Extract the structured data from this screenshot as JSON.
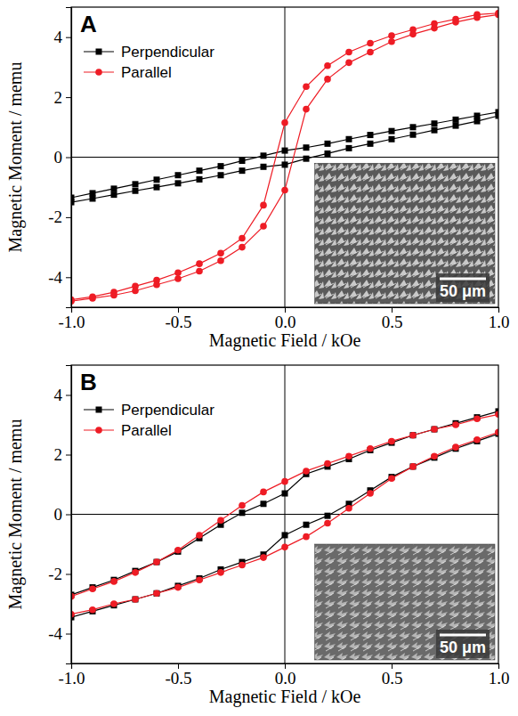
{
  "chart_data": [
    {
      "type": "line",
      "title": "A",
      "x_label": "Magnetic Field / kOe",
      "y_label": "Magnetic Moment / memu",
      "annotations": [
        "50 μm"
      ],
      "x": [
        1,
        0.9,
        0.8,
        0.7,
        0.6,
        0.5,
        0.4,
        0.3,
        0.2,
        0.1,
        0,
        -0.1,
        -0.2,
        -0.3,
        -0.4,
        -0.5,
        -0.6,
        -0.7,
        -0.8,
        -0.9,
        -1,
        -1,
        -0.9,
        -0.8,
        -0.7,
        -0.6,
        -0.5,
        -0.4,
        -0.3,
        -0.2,
        -0.1,
        0,
        0.1,
        0.2,
        0.3,
        0.4,
        0.5,
        0.6,
        0.7,
        0.8,
        0.9,
        1
      ],
      "series": [
        {
          "name": "Perpendicular",
          "color": "#000000",
          "marker": "square",
          "line_style": "solid",
          "values": [
            1.5,
            1.38,
            1.25,
            1.12,
            1.0,
            0.87,
            0.74,
            0.6,
            0.45,
            0.32,
            0.22,
            0.05,
            -0.12,
            -0.3,
            -0.45,
            -0.6,
            -0.75,
            -0.9,
            -1.05,
            -1.2,
            -1.35,
            -1.5,
            -1.38,
            -1.25,
            -1.12,
            -1.0,
            -0.87,
            -0.74,
            -0.6,
            -0.45,
            -0.32,
            -0.25,
            -0.05,
            0.12,
            0.3,
            0.45,
            0.6,
            0.75,
            0.9,
            1.05,
            1.2,
            1.38
          ]
        },
        {
          "name": "Parallel",
          "color": "#ee1c25",
          "marker": "circle",
          "line_style": "solid",
          "values": [
            4.8,
            4.75,
            4.6,
            4.45,
            4.25,
            4.05,
            3.8,
            3.5,
            3.05,
            2.35,
            1.15,
            -1.6,
            -2.7,
            -3.2,
            -3.55,
            -3.85,
            -4.1,
            -4.3,
            -4.5,
            -4.65,
            -4.75,
            -4.8,
            -4.7,
            -4.6,
            -4.45,
            -4.25,
            -4.05,
            -3.8,
            -3.45,
            -3.0,
            -2.3,
            -1.1,
            1.6,
            2.6,
            3.15,
            3.5,
            3.85,
            4.1,
            4.3,
            4.5,
            4.65,
            4.75
          ]
        }
      ],
      "xlim": [
        -1,
        1
      ],
      "xticks": [
        {
          "value": -1,
          "label": "-1.0"
        },
        -0.5,
        {
          "value": 0,
          "label": "0.0"
        },
        0.5,
        {
          "value": 1,
          "label": "1.0"
        }
      ],
      "ylim": [
        -5,
        5
      ],
      "yticks": [
        -4,
        -2,
        0,
        2,
        4
      ],
      "grid": false,
      "legend": "upper left"
    },
    {
      "type": "line",
      "title": "B",
      "x_label": "Magnetic Field / kOe",
      "y_label": "Magnetic Moment / memu",
      "annotations": [
        "50 μm"
      ],
      "x": [
        1,
        0.9,
        0.8,
        0.7,
        0.6,
        0.5,
        0.4,
        0.3,
        0.2,
        0.1,
        0,
        -0.1,
        -0.2,
        -0.3,
        -0.4,
        -0.5,
        -0.6,
        -0.7,
        -0.8,
        -0.9,
        -1,
        -1,
        -0.9,
        -0.8,
        -0.7,
        -0.6,
        -0.5,
        -0.4,
        -0.3,
        -0.2,
        -0.1,
        0,
        0.1,
        0.2,
        0.3,
        0.4,
        0.5,
        0.6,
        0.7,
        0.8,
        0.9,
        1
      ],
      "series": [
        {
          "name": "Perpendicular",
          "color": "#000000",
          "marker": "square",
          "line_style": "solid",
          "values": [
            3.45,
            3.25,
            3.05,
            2.85,
            2.65,
            2.4,
            2.15,
            1.85,
            1.6,
            1.35,
            0.7,
            0.35,
            0.05,
            -0.35,
            -0.8,
            -1.25,
            -1.6,
            -1.9,
            -2.2,
            -2.45,
            -2.7,
            -3.45,
            -3.25,
            -3.05,
            -2.85,
            -2.65,
            -2.4,
            -2.15,
            -1.85,
            -1.6,
            -1.35,
            -0.7,
            -0.35,
            -0.05,
            0.35,
            0.8,
            1.25,
            1.6,
            1.9,
            2.2,
            2.45,
            2.7
          ]
        },
        {
          "name": "Parallel",
          "color": "#ee1c25",
          "marker": "circle",
          "line_style": "solid",
          "values": [
            3.35,
            3.2,
            3.0,
            2.85,
            2.65,
            2.45,
            2.2,
            1.95,
            1.7,
            1.45,
            1.1,
            0.75,
            0.3,
            -0.2,
            -0.7,
            -1.2,
            -1.6,
            -1.95,
            -2.25,
            -2.5,
            -2.75,
            -3.35,
            -3.2,
            -3.0,
            -2.85,
            -2.65,
            -2.45,
            -2.2,
            -1.95,
            -1.7,
            -1.45,
            -1.1,
            -0.75,
            -0.3,
            0.2,
            0.7,
            1.2,
            1.6,
            1.95,
            2.25,
            2.5,
            2.75
          ]
        }
      ],
      "xlim": [
        -1,
        1
      ],
      "xticks": [
        {
          "value": -1,
          "label": "-1.0"
        },
        -0.5,
        {
          "value": 0,
          "label": "0.0"
        },
        0.5,
        {
          "value": 1,
          "label": "1.0"
        }
      ],
      "ylim": [
        -5,
        5
      ],
      "yticks": [
        -4,
        -2,
        0,
        2,
        4
      ],
      "grid": false,
      "legend": "upper left"
    }
  ]
}
